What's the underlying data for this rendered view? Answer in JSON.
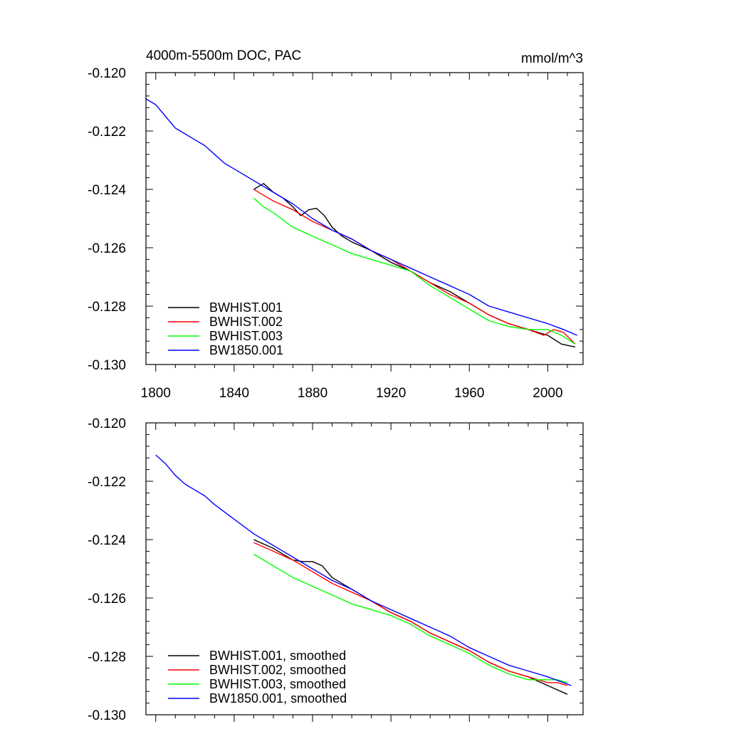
{
  "colors": {
    "black": "#000000",
    "red": "#ff0000",
    "green": "#00ff00",
    "blue": "#0000ff"
  },
  "chart_data": [
    {
      "type": "line",
      "title": "4000m-5500m DOC, PAC",
      "units": "mmol/m^3",
      "xlim": [
        1795,
        2018
      ],
      "ylim": [
        -0.13,
        -0.12
      ],
      "x_ticks": [
        1800,
        1840,
        1880,
        1920,
        1960,
        2000
      ],
      "x_tick_labels": [
        "1800",
        "1840",
        "1880",
        "1920",
        "1960",
        "2000"
      ],
      "y_ticks": [
        -0.12,
        -0.122,
        -0.124,
        -0.126,
        -0.128,
        -0.13
      ],
      "y_tick_labels": [
        "-0.120",
        "-0.122",
        "-0.124",
        "-0.126",
        "-0.128",
        "-0.130"
      ],
      "legend_position": "bottom-left",
      "grid": false,
      "series": [
        {
          "name": "BWHIST.001",
          "color": "#000000",
          "points": [
            [
              1850,
              -0.124
            ],
            [
              1855,
              -0.1238
            ],
            [
              1860,
              -0.1241
            ],
            [
              1865,
              -0.1243
            ],
            [
              1870,
              -0.1246
            ],
            [
              1874,
              -0.1249
            ],
            [
              1878,
              -0.1247
            ],
            [
              1882,
              -0.12465
            ],
            [
              1886,
              -0.1249
            ],
            [
              1890,
              -0.1253
            ],
            [
              1895,
              -0.1256
            ],
            [
              1900,
              -0.1258
            ],
            [
              1910,
              -0.1261
            ],
            [
              1920,
              -0.1265
            ],
            [
              1930,
              -0.1268
            ],
            [
              1940,
              -0.1272
            ],
            [
              1950,
              -0.1275
            ],
            [
              1960,
              -0.1279
            ],
            [
              1970,
              -0.1283
            ],
            [
              1980,
              -0.1286
            ],
            [
              1990,
              -0.1288
            ],
            [
              2000,
              -0.129
            ],
            [
              2007,
              -0.1293
            ],
            [
              2014,
              -0.1294
            ]
          ]
        },
        {
          "name": "BWHIST.002",
          "color": "#ff0000",
          "points": [
            [
              1850,
              -0.124
            ],
            [
              1855,
              -0.1242
            ],
            [
              1860,
              -0.1244
            ],
            [
              1870,
              -0.1247
            ],
            [
              1880,
              -0.1251
            ],
            [
              1890,
              -0.1254
            ],
            [
              1900,
              -0.1257
            ],
            [
              1910,
              -0.1261
            ],
            [
              1920,
              -0.1264
            ],
            [
              1930,
              -0.1268
            ],
            [
              1940,
              -0.1272
            ],
            [
              1950,
              -0.1276
            ],
            [
              1960,
              -0.1279
            ],
            [
              1970,
              -0.1283
            ],
            [
              1980,
              -0.1286
            ],
            [
              1990,
              -0.1288
            ],
            [
              1998,
              -0.129
            ],
            [
              2003,
              -0.1288
            ],
            [
              2008,
              -0.1289
            ],
            [
              2014,
              -0.1293
            ]
          ]
        },
        {
          "name": "BWHIST.003",
          "color": "#00ff00",
          "points": [
            [
              1850,
              -0.1243
            ],
            [
              1855,
              -0.1246
            ],
            [
              1860,
              -0.1248
            ],
            [
              1870,
              -0.1253
            ],
            [
              1880,
              -0.1256
            ],
            [
              1890,
              -0.1259
            ],
            [
              1900,
              -0.1262
            ],
            [
              1910,
              -0.1264
            ],
            [
              1920,
              -0.1266
            ],
            [
              1930,
              -0.1268
            ],
            [
              1940,
              -0.1273
            ],
            [
              1950,
              -0.1277
            ],
            [
              1960,
              -0.1281
            ],
            [
              1970,
              -0.1285
            ],
            [
              1980,
              -0.1287
            ],
            [
              1990,
              -0.1288
            ],
            [
              2000,
              -0.1288
            ],
            [
              2007,
              -0.129
            ],
            [
              2014,
              -0.1293
            ]
          ]
        },
        {
          "name": "BW1850.001",
          "color": "#0000ff",
          "points": [
            [
              1795,
              -0.1209
            ],
            [
              1800,
              -0.1211
            ],
            [
              1805,
              -0.1215
            ],
            [
              1810,
              -0.1219
            ],
            [
              1815,
              -0.1221
            ],
            [
              1820,
              -0.1223
            ],
            [
              1825,
              -0.1225
            ],
            [
              1830,
              -0.1228
            ],
            [
              1835,
              -0.1231
            ],
            [
              1840,
              -0.1233
            ],
            [
              1850,
              -0.1237
            ],
            [
              1860,
              -0.1241
            ],
            [
              1870,
              -0.1245
            ],
            [
              1880,
              -0.125
            ],
            [
              1890,
              -0.1254
            ],
            [
              1900,
              -0.1257
            ],
            [
              1910,
              -0.1261
            ],
            [
              1920,
              -0.1264
            ],
            [
              1930,
              -0.1267
            ],
            [
              1940,
              -0.127
            ],
            [
              1950,
              -0.1273
            ],
            [
              1960,
              -0.1276
            ],
            [
              1970,
              -0.128
            ],
            [
              1980,
              -0.1282
            ],
            [
              1990,
              -0.1284
            ],
            [
              2000,
              -0.1286
            ],
            [
              2008,
              -0.1288
            ],
            [
              2015,
              -0.129
            ]
          ]
        }
      ]
    },
    {
      "type": "line",
      "xlim": [
        1795,
        2018
      ],
      "ylim": [
        -0.13,
        -0.12
      ],
      "x_ticks": [
        1800,
        1840,
        1880,
        1920,
        1960,
        2000
      ],
      "y_ticks": [
        -0.12,
        -0.122,
        -0.124,
        -0.126,
        -0.128,
        -0.13
      ],
      "y_tick_labels": [
        "-0.120",
        "-0.122",
        "-0.124",
        "-0.126",
        "-0.128",
        "-0.130"
      ],
      "legend_position": "bottom-left",
      "grid": false,
      "series": [
        {
          "name": "BWHIST.001, smoothed",
          "color": "#000000",
          "points": [
            [
              1850,
              -0.124
            ],
            [
              1860,
              -0.1243
            ],
            [
              1870,
              -0.1247
            ],
            [
              1875,
              -0.12475
            ],
            [
              1880,
              -0.12475
            ],
            [
              1885,
              -0.1249
            ],
            [
              1890,
              -0.1253
            ],
            [
              1900,
              -0.1257
            ],
            [
              1910,
              -0.1261
            ],
            [
              1920,
              -0.1265
            ],
            [
              1930,
              -0.1268
            ],
            [
              1940,
              -0.1272
            ],
            [
              1950,
              -0.1275
            ],
            [
              1960,
              -0.1278
            ],
            [
              1970,
              -0.1282
            ],
            [
              1980,
              -0.1285
            ],
            [
              1990,
              -0.1287
            ],
            [
              2000,
              -0.129
            ],
            [
              2010,
              -0.1293
            ]
          ]
        },
        {
          "name": "BWHIST.002, smoothed",
          "color": "#ff0000",
          "points": [
            [
              1850,
              -0.1241
            ],
            [
              1860,
              -0.1244
            ],
            [
              1870,
              -0.1247
            ],
            [
              1880,
              -0.1251
            ],
            [
              1890,
              -0.1255
            ],
            [
              1900,
              -0.1258
            ],
            [
              1910,
              -0.1261
            ],
            [
              1920,
              -0.1265
            ],
            [
              1930,
              -0.1268
            ],
            [
              1940,
              -0.1272
            ],
            [
              1950,
              -0.1275
            ],
            [
              1960,
              -0.1278
            ],
            [
              1970,
              -0.1282
            ],
            [
              1980,
              -0.1285
            ],
            [
              1990,
              -0.1287
            ],
            [
              2000,
              -0.1289
            ],
            [
              2005,
              -0.1289
            ],
            [
              2010,
              -0.129
            ]
          ]
        },
        {
          "name": "BWHIST.003, smoothed",
          "color": "#00ff00",
          "points": [
            [
              1850,
              -0.1245
            ],
            [
              1860,
              -0.1249
            ],
            [
              1870,
              -0.1253
            ],
            [
              1880,
              -0.1256
            ],
            [
              1890,
              -0.1259
            ],
            [
              1900,
              -0.1262
            ],
            [
              1910,
              -0.1264
            ],
            [
              1920,
              -0.1266
            ],
            [
              1930,
              -0.1269
            ],
            [
              1940,
              -0.1273
            ],
            [
              1950,
              -0.1276
            ],
            [
              1960,
              -0.1279
            ],
            [
              1970,
              -0.1283
            ],
            [
              1980,
              -0.1286
            ],
            [
              1990,
              -0.1288
            ],
            [
              2000,
              -0.1288
            ],
            [
              2005,
              -0.1288
            ],
            [
              2010,
              -0.1289
            ]
          ]
        },
        {
          "name": "BW1850.001, smoothed",
          "color": "#0000ff",
          "points": [
            [
              1800,
              -0.1211
            ],
            [
              1805,
              -0.1214
            ],
            [
              1810,
              -0.1218
            ],
            [
              1815,
              -0.1221
            ],
            [
              1820,
              -0.1223
            ],
            [
              1825,
              -0.1225
            ],
            [
              1830,
              -0.1228
            ],
            [
              1840,
              -0.1233
            ],
            [
              1850,
              -0.1238
            ],
            [
              1860,
              -0.1242
            ],
            [
              1870,
              -0.1246
            ],
            [
              1880,
              -0.125
            ],
            [
              1890,
              -0.1254
            ],
            [
              1900,
              -0.1257
            ],
            [
              1910,
              -0.1261
            ],
            [
              1920,
              -0.1264
            ],
            [
              1930,
              -0.1267
            ],
            [
              1940,
              -0.127
            ],
            [
              1950,
              -0.1273
            ],
            [
              1960,
              -0.1277
            ],
            [
              1970,
              -0.128
            ],
            [
              1980,
              -0.1283
            ],
            [
              1990,
              -0.1285
            ],
            [
              2000,
              -0.1287
            ],
            [
              2012,
              -0.129
            ]
          ]
        }
      ]
    }
  ]
}
